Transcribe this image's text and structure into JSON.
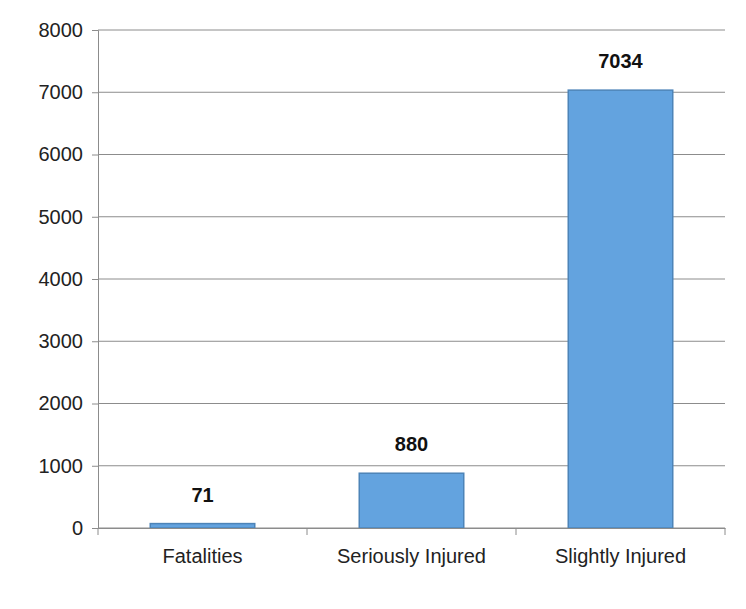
{
  "chart_data": {
    "type": "bar",
    "categories": [
      "Fatalities",
      "Seriously Injured",
      "Slightly Injured"
    ],
    "values": [
      71,
      880,
      7034
    ],
    "color": "#63a3df",
    "ylim": [
      0,
      8000
    ],
    "yticks": [
      0,
      1000,
      2000,
      3000,
      4000,
      5000,
      6000,
      7000,
      8000
    ],
    "grid": true,
    "data_labels": true
  }
}
